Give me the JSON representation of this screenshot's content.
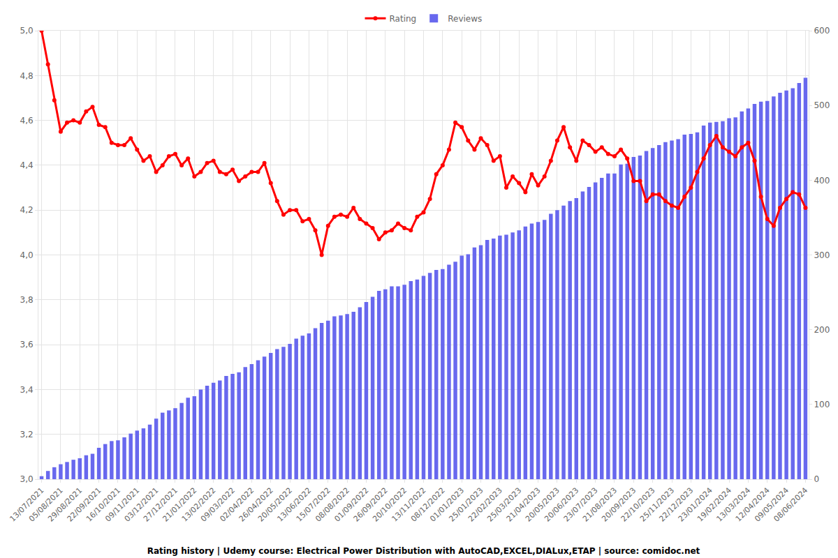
{
  "chart_data": {
    "type": "bar_line",
    "title": "Rating history | Udemy course: Electrical Power Distribution with AutoCAD,EXCEL,DIALux,ETAP | source: comidoc.net",
    "categories": [
      "13/07/2021",
      null,
      null,
      "05/08/2021",
      null,
      null,
      "29/08/2021",
      null,
      null,
      "22/09/2021",
      null,
      null,
      "16/10/2021",
      null,
      null,
      "09/11/2021",
      null,
      null,
      "03/12/2021",
      null,
      null,
      "27/12/2021",
      null,
      null,
      "21/01/2022",
      null,
      null,
      "13/02/2022",
      null,
      null,
      "09/03/2022",
      null,
      null,
      "02/04/2022",
      null,
      null,
      "26/04/2022",
      null,
      null,
      "20/05/2022",
      null,
      null,
      "13/06/2022",
      null,
      null,
      "15/07/2022",
      null,
      null,
      "08/08/2022",
      null,
      null,
      "01/09/2022",
      null,
      null,
      "26/09/2022",
      null,
      null,
      "20/10/2022",
      null,
      null,
      "13/11/2022",
      null,
      null,
      "08/12/2022",
      null,
      null,
      "01/01/2023",
      null,
      null,
      "25/01/2023",
      null,
      null,
      "22/02/2023",
      null,
      null,
      "25/03/2023",
      null,
      null,
      "21/04/2023",
      null,
      null,
      "20/05/2023",
      null,
      null,
      "20/06/2023",
      null,
      null,
      "23/07/2023",
      null,
      null,
      "21/08/2023",
      null,
      null,
      "20/09/2023",
      null,
      null,
      "22/10/2023",
      null,
      null,
      "25/11/2023",
      null,
      null,
      "22/12/2023",
      null,
      null,
      "23/01/2024",
      null,
      null,
      "19/02/2024",
      null,
      null,
      "13/03/2024",
      null,
      null,
      "12/04/2024",
      null,
      null,
      "09/05/2024",
      null,
      null,
      "08/06/2024"
    ],
    "series": [
      {
        "name": "Rating",
        "type": "line",
        "color": "#ff0000",
        "marker": "circle",
        "line_style": "solid",
        "values": [
          5.0,
          4.85,
          4.69,
          4.55,
          4.59,
          4.6,
          4.59,
          4.64,
          4.66,
          4.58,
          4.57,
          4.5,
          4.49,
          4.49,
          4.52,
          4.47,
          4.42,
          4.44,
          4.37,
          4.4,
          4.44,
          4.45,
          4.4,
          4.43,
          4.35,
          4.37,
          4.41,
          4.42,
          4.37,
          4.36,
          4.38,
          4.33,
          4.35,
          4.37,
          4.37,
          4.41,
          4.32,
          4.24,
          4.18,
          4.2,
          4.2,
          4.15,
          4.16,
          4.11,
          4.0,
          4.13,
          4.17,
          4.18,
          4.17,
          4.21,
          4.16,
          4.14,
          4.12,
          4.07,
          4.1,
          4.11,
          4.14,
          4.12,
          4.11,
          4.17,
          4.19,
          4.25,
          4.36,
          4.4,
          4.47,
          4.59,
          4.57,
          4.51,
          4.47,
          4.52,
          4.49,
          4.42,
          4.44,
          4.3,
          4.35,
          4.32,
          4.28,
          4.36,
          4.31,
          4.35,
          4.42,
          4.51,
          4.57,
          4.48,
          4.42,
          4.51,
          4.49,
          4.46,
          4.48,
          4.45,
          4.44,
          4.47,
          4.43,
          4.33,
          4.33,
          4.24,
          4.27,
          4.27,
          4.24,
          4.22,
          4.21,
          4.26,
          4.3,
          4.37,
          4.43,
          4.49,
          4.53,
          4.48,
          4.46,
          4.44,
          4.48,
          4.5,
          4.42,
          4.26,
          4.16,
          4.13,
          4.21,
          4.25,
          4.28,
          4.27,
          4.21
        ]
      },
      {
        "name": "Reviews",
        "type": "bar",
        "color": "#6868ee",
        "axis": "y2",
        "values": [
          4,
          11,
          16,
          20,
          23,
          26,
          28,
          32,
          34,
          42,
          47,
          51,
          52,
          56,
          61,
          65,
          68,
          73,
          81,
          89,
          92,
          95,
          102,
          109,
          111,
          120,
          125,
          129,
          132,
          138,
          141,
          143,
          150,
          154,
          159,
          164,
          169,
          174,
          177,
          181,
          188,
          192,
          195,
          202,
          209,
          212,
          218,
          219,
          221,
          224,
          230,
          237,
          244,
          252,
          254,
          258,
          258,
          260,
          265,
          267,
          272,
          276,
          280,
          281,
          287,
          291,
          299,
          301,
          310,
          313,
          320,
          322,
          326,
          327,
          330,
          333,
          338,
          342,
          344,
          347,
          355,
          360,
          366,
          372,
          376,
          385,
          391,
          397,
          403,
          409,
          409,
          421,
          422,
          431,
          433,
          439,
          443,
          447,
          451,
          453,
          455,
          461,
          462,
          464,
          473,
          477,
          478,
          479,
          483,
          484,
          492,
          496,
          502,
          505,
          506,
          512,
          517,
          520,
          523,
          530,
          537
        ]
      }
    ],
    "ylim": [
      3.0,
      5.0
    ],
    "yticks": [
      {
        "value": 3.0,
        "label": "3,0"
      },
      {
        "value": 3.2,
        "label": "3,2"
      },
      {
        "value": 3.4,
        "label": "3,4"
      },
      {
        "value": 3.6,
        "label": "3,6"
      },
      {
        "value": 3.8,
        "label": "3,8"
      },
      {
        "value": 4.0,
        "label": "4,0"
      },
      {
        "value": 4.2,
        "label": "4,2"
      },
      {
        "value": 4.4,
        "label": "4,4"
      },
      {
        "value": 4.6,
        "label": "4,6"
      },
      {
        "value": 4.8,
        "label": "4,8"
      },
      {
        "value": 5.0,
        "label": "5,0"
      }
    ],
    "y2lim": [
      0,
      600
    ],
    "y2ticks": [
      0,
      100,
      200,
      300,
      400,
      500,
      600
    ],
    "grid": true,
    "legend": "top"
  }
}
